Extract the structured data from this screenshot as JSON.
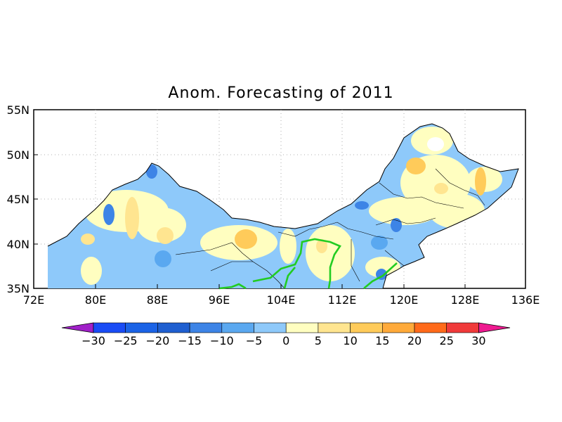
{
  "map": {
    "title": "Anom. Forecasting of 2011",
    "lat_labels": [
      "55N",
      "50N",
      "45N",
      "40N",
      "35N"
    ],
    "lon_labels": [
      "72E",
      "80E",
      "88E",
      "96E",
      "104E",
      "112E",
      "120E",
      "128E",
      "136E"
    ]
  },
  "colorbar": {
    "labels": [
      "−30",
      "−25",
      "−20",
      "−15",
      "−10",
      "−5",
      "0",
      "5",
      "10",
      "15",
      "20",
      "25",
      "30"
    ],
    "colors": [
      "#1a4cf5",
      "#1b63e6",
      "#1f5fd0",
      "#3d84e6",
      "#5aa8f0",
      "#8ec9fa",
      "#fffec0",
      "#ffe590",
      "#ffcb5a",
      "#ffaa3a",
      "#ff6a1a",
      "#f03a3a"
    ],
    "under_color": "#a020c8",
    "over_color": "#ee1a90"
  },
  "colors": {
    "neutral_fill": "#fffec0",
    "light_blue": "#8ec9fa",
    "mid_blue": "#5aa8f0",
    "dark_blue": "#3d84e6",
    "light_orange": "#ffe590",
    "orange": "#ffcb5a",
    "river_green": "#22cc22"
  }
}
